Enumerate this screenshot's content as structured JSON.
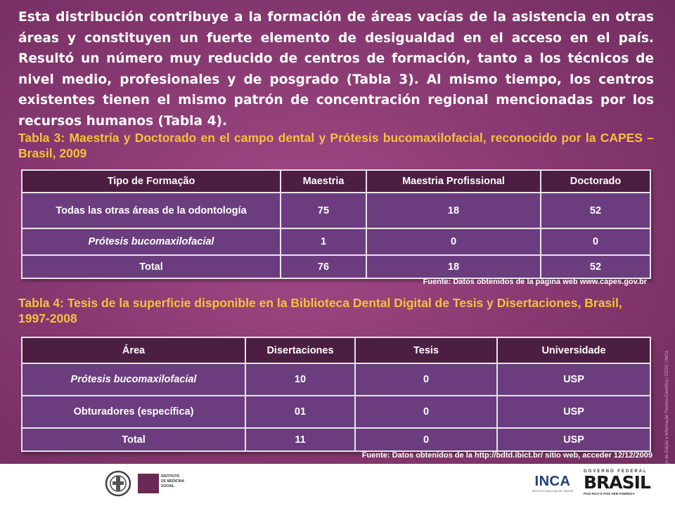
{
  "intro_text": "Esta distribución contribuye a la formación de áreas vacías de la asistencia en otras áreas y constituyen un fuerte elemento de desigualdad en el acceso en el país.  Resultó un número muy reducido de centros de formación, tanto a los técnicos de nivel medio, profesionales y de posgrado (Tabla 3). Al mismo tiempo, los centros existentes tienen el mismo patrón de concentración regional mencionadas por los recursos humanos (Tabla 4).",
  "table3": {
    "caption": "Tabla 3: Maestría y Doctorado en el campo dental y Prótesis bucomaxilofacial, reconocido por la CAPES – Brasil, 2009",
    "headers": [
      "Tipo de Formação",
      "Maestria",
      "Maestria Profissional",
      "Doctorado"
    ],
    "rows": [
      [
        "Todas las otras áreas de la odontología",
        "75",
        "18",
        "52"
      ],
      [
        "Prótesis bucomaxilofacial",
        "1",
        "0",
        "0"
      ],
      [
        "Total",
        "76",
        "18",
        "52"
      ]
    ],
    "source": "Fuente: Datos obtenidos de la página web www.capes.gov.br"
  },
  "table4": {
    "caption": "Tabla 4: Tesis de la superficie disponible en la Biblioteca Dental Digital de Tesis y Disertaciones, Brasil, 1997-2008",
    "headers": [
      "Área",
      "Disertaciones",
      "Tesis",
      "Universidade"
    ],
    "rows": [
      [
        "Prótesis bucomaxilofacial",
        "10",
        "0",
        "USP"
      ],
      [
        "Obturadores (específica)",
        "01",
        "0",
        "USP"
      ],
      [
        "Total",
        "11",
        "0",
        "USP"
      ]
    ],
    "source": "Fuente: Datos obtenidos de la http://bdtd.ibict.br/ sitio web, acceder 12/12/2009"
  },
  "side_credit": "Projeto Gráfico: Serviço de Edição e Informação Técnico-Científica / CEDC / INCA",
  "footer": {
    "ims_logo": {
      "line1": "INSTITUTO",
      "line2": "DE MEDICINA",
      "line3": "SOCIAL"
    },
    "inca_logo": {
      "name": "INCA",
      "subtitle": "INSTITUTO NACIONAL DE CÂNCER"
    },
    "brasil_logo": {
      "top": "GOVERNO FEDERAL",
      "name": "BRASIL",
      "slogan": "PAÍS RICO É PAÍS SEM POBREZA"
    }
  },
  "colors": {
    "accent": "#f6c23a",
    "header_bg": "#4c1e42",
    "cell_bg": "#6b3d7e",
    "background": "#8a3a73"
  }
}
